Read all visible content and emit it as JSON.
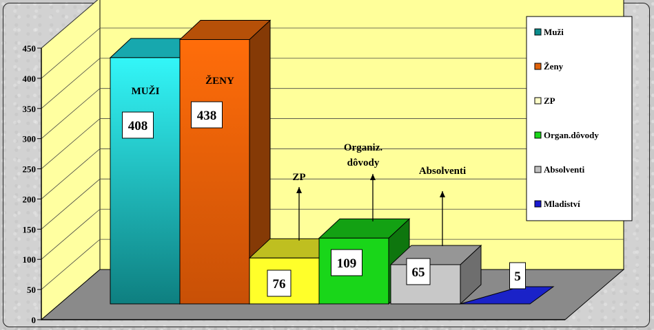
{
  "chart_data": {
    "type": "bar",
    "categories": [
      "Muži",
      "Ženy",
      "ZP",
      "Organ.dôvody",
      "Absolventi",
      "Mladiství"
    ],
    "values": [
      408,
      438,
      76,
      109,
      65,
      5
    ],
    "ylim": [
      0,
      450
    ],
    "yticks": [
      "0",
      "50",
      "100",
      "150",
      "200",
      "250",
      "300",
      "350",
      "400",
      "450"
    ],
    "grid": true,
    "legend_position": "right",
    "bar_labels": [
      "MUŽI",
      "ŽENY",
      "ZP",
      "Organiz.\ndôvody",
      "Absolventi",
      ""
    ],
    "value_labels": [
      "408",
      "438",
      "76",
      "109",
      "65",
      "5"
    ],
    "colors": [
      "#1fe0e8",
      "#f26a0a",
      "#ffff2a",
      "#19d619",
      "#c8c8c8",
      "#1a22c8"
    ],
    "legend": [
      {
        "label": "Muži",
        "color": "#0a8c8c"
      },
      {
        "label": "Ženy",
        "color": "#e0620a"
      },
      {
        "label": "ZP",
        "color": "#ffffc8"
      },
      {
        "label": "Organ.dôvody",
        "color": "#19d619"
      },
      {
        "label": "Absolventi",
        "color": "#c0c0c0"
      },
      {
        "label": "Mladiství",
        "color": "#1a1ad0"
      }
    ]
  }
}
